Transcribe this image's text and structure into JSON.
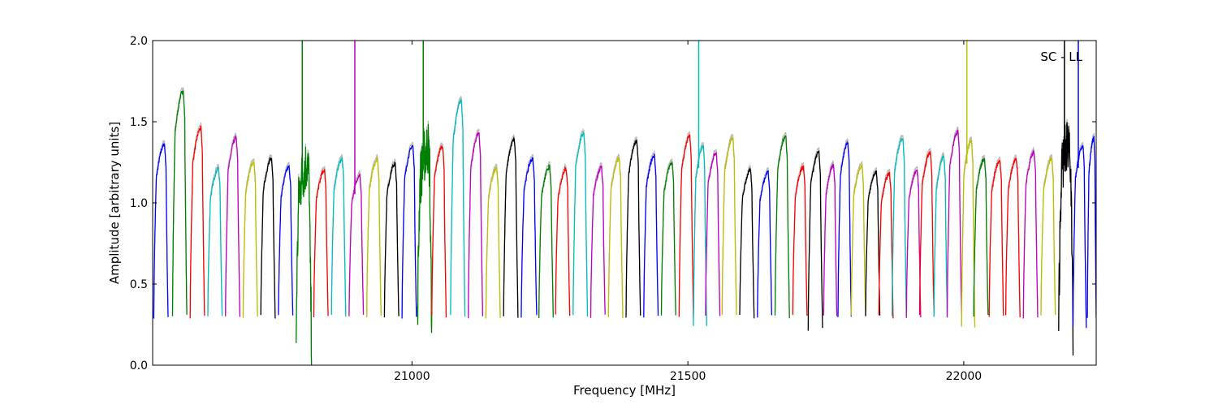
{
  "chart_data": {
    "type": "line",
    "title": "",
    "annotation": "SC - LL",
    "xlabel": "Frequency [MHz]",
    "ylabel": "Amplitude [arbitrary units]",
    "xlim": [
      20530,
      22240
    ],
    "ylim": [
      0.0,
      2.0
    ],
    "x_ticks": [
      21000,
      21500,
      22000
    ],
    "y_ticks": [
      0.0,
      0.5,
      1.0,
      1.5,
      2.0
    ],
    "x_tick_labels": [
      "21000",
      "21500",
      "22000"
    ],
    "y_tick_labels": [
      "0.0",
      "0.5",
      "1.0",
      "1.5",
      "2.0"
    ],
    "grid": false,
    "legend": "none",
    "color_cycle": [
      "#0000ff",
      "#008000",
      "#ff0000",
      "#00bfbf",
      "#bf00bf",
      "#bfbf00",
      "#000000"
    ],
    "reference_color": "#bbbbbb",
    "bands": [
      {
        "x0": 20532,
        "x1": 20558,
        "peak": 1.36,
        "color": "#0000ff"
      },
      {
        "x0": 20566,
        "x1": 20592,
        "peak": 1.69,
        "color": "#008000"
      },
      {
        "x0": 20598,
        "x1": 20624,
        "peak": 1.46,
        "color": "#ff0000"
      },
      {
        "x0": 20630,
        "x1": 20656,
        "peak": 1.21,
        "color": "#00bfbf"
      },
      {
        "x0": 20662,
        "x1": 20688,
        "peak": 1.4,
        "color": "#bf00bf"
      },
      {
        "x0": 20694,
        "x1": 20720,
        "peak": 1.25,
        "color": "#bfbf00"
      },
      {
        "x0": 20726,
        "x1": 20752,
        "peak": 1.27,
        "color": "#000000"
      },
      {
        "x0": 20758,
        "x1": 20784,
        "peak": 1.22,
        "color": "#0000ff"
      },
      {
        "x0": 20790,
        "x1": 20818,
        "peak": 1.24,
        "color": "#008000",
        "min": 0.13,
        "noisy": true,
        "spike": 2.0
      },
      {
        "x0": 20822,
        "x1": 20848,
        "peak": 1.2,
        "color": "#ff0000"
      },
      {
        "x0": 20854,
        "x1": 20880,
        "peak": 1.27,
        "color": "#00bfbf"
      },
      {
        "x0": 20886,
        "x1": 20912,
        "peak": 1.17,
        "color": "#bf00bf",
        "spike": 2.0
      },
      {
        "x0": 20918,
        "x1": 20944,
        "peak": 1.27,
        "color": "#bfbf00"
      },
      {
        "x0": 20950,
        "x1": 20976,
        "peak": 1.24,
        "color": "#000000"
      },
      {
        "x0": 20982,
        "x1": 21008,
        "peak": 1.35,
        "color": "#0000ff"
      },
      {
        "x0": 21010,
        "x1": 21036,
        "peak": 1.34,
        "color": "#008000",
        "min": 0.24,
        "noisy": true,
        "spike": 2.0
      },
      {
        "x0": 21036,
        "x1": 21062,
        "peak": 1.35,
        "color": "#ff0000"
      },
      {
        "x0": 21070,
        "x1": 21096,
        "peak": 1.63,
        "color": "#00bfbf"
      },
      {
        "x0": 21102,
        "x1": 21128,
        "peak": 1.43,
        "color": "#bf00bf"
      },
      {
        "x0": 21134,
        "x1": 21160,
        "peak": 1.21,
        "color": "#bfbf00"
      },
      {
        "x0": 21166,
        "x1": 21192,
        "peak": 1.39,
        "color": "#000000"
      },
      {
        "x0": 21198,
        "x1": 21226,
        "peak": 1.27,
        "color": "#0000ff"
      },
      {
        "x0": 21230,
        "x1": 21256,
        "peak": 1.22,
        "color": "#008000"
      },
      {
        "x0": 21260,
        "x1": 21286,
        "peak": 1.21,
        "color": "#ff0000"
      },
      {
        "x0": 21292,
        "x1": 21318,
        "peak": 1.43,
        "color": "#00bfbf"
      },
      {
        "x0": 21324,
        "x1": 21350,
        "peak": 1.22,
        "color": "#bf00bf"
      },
      {
        "x0": 21356,
        "x1": 21382,
        "peak": 1.27,
        "color": "#bfbf00"
      },
      {
        "x0": 21388,
        "x1": 21414,
        "peak": 1.38,
        "color": "#000000"
      },
      {
        "x0": 21420,
        "x1": 21446,
        "peak": 1.29,
        "color": "#0000ff"
      },
      {
        "x0": 21452,
        "x1": 21478,
        "peak": 1.25,
        "color": "#008000"
      },
      {
        "x0": 21484,
        "x1": 21510,
        "peak": 1.41,
        "color": "#ff0000"
      },
      {
        "x0": 21510,
        "x1": 21534,
        "peak": 1.35,
        "color": "#00bfbf",
        "min": 0.23,
        "spike": 2.0
      },
      {
        "x0": 21532,
        "x1": 21558,
        "peak": 1.31,
        "color": "#bf00bf"
      },
      {
        "x0": 21562,
        "x1": 21588,
        "peak": 1.4,
        "color": "#bfbf00"
      },
      {
        "x0": 21594,
        "x1": 21620,
        "peak": 1.2,
        "color": "#000000"
      },
      {
        "x0": 21626,
        "x1": 21652,
        "peak": 1.19,
        "color": "#0000ff"
      },
      {
        "x0": 21658,
        "x1": 21684,
        "peak": 1.41,
        "color": "#008000"
      },
      {
        "x0": 21690,
        "x1": 21716,
        "peak": 1.22,
        "color": "#ff0000"
      },
      {
        "x0": 21718,
        "x1": 21744,
        "peak": 1.31,
        "color": "#000000",
        "min": 0.22
      },
      {
        "x0": 21746,
        "x1": 21770,
        "peak": 1.23,
        "color": "#bf00bf"
      },
      {
        "x0": 21772,
        "x1": 21796,
        "peak": 1.37,
        "color": "#0000ff"
      },
      {
        "x0": 21796,
        "x1": 21822,
        "peak": 1.23,
        "color": "#bfbf00"
      },
      {
        "x0": 21822,
        "x1": 21848,
        "peak": 1.19,
        "color": "#000000"
      },
      {
        "x0": 21846,
        "x1": 21872,
        "peak": 1.18,
        "color": "#ff0000"
      },
      {
        "x0": 21870,
        "x1": 21896,
        "peak": 1.4,
        "color": "#00bfbf"
      },
      {
        "x0": 21896,
        "x1": 21922,
        "peak": 1.2,
        "color": "#bf00bf"
      },
      {
        "x0": 21920,
        "x1": 21946,
        "peak": 1.31,
        "color": "#ff0000"
      },
      {
        "x0": 21946,
        "x1": 21970,
        "peak": 1.28,
        "color": "#00bfbf"
      },
      {
        "x0": 21970,
        "x1": 21996,
        "peak": 1.44,
        "color": "#bf00bf"
      },
      {
        "x0": 21996,
        "x1": 22020,
        "peak": 1.38,
        "color": "#bfbf00",
        "min": 0.24,
        "spike": 2.0
      },
      {
        "x0": 22018,
        "x1": 22044,
        "peak": 1.27,
        "color": "#008000"
      },
      {
        "x0": 22046,
        "x1": 22072,
        "peak": 1.26,
        "color": "#ff0000"
      },
      {
        "x0": 22076,
        "x1": 22102,
        "peak": 1.27,
        "color": "#ff0000"
      },
      {
        "x0": 22108,
        "x1": 22134,
        "peak": 1.31,
        "color": "#bf00bf"
      },
      {
        "x0": 22140,
        "x1": 22166,
        "peak": 1.27,
        "color": "#bfbf00"
      },
      {
        "x0": 22172,
        "x1": 22198,
        "peak": 1.38,
        "color": "#000000",
        "min": 0.2,
        "noisy": true,
        "spike": 2.0
      },
      {
        "x0": 22198,
        "x1": 22222,
        "peak": 1.35,
        "color": "#0000ff",
        "min": 0.23,
        "spike": 2.0
      },
      {
        "x0": 22224,
        "x1": 22240,
        "peak": 1.4,
        "color": "#0000ff"
      }
    ]
  }
}
